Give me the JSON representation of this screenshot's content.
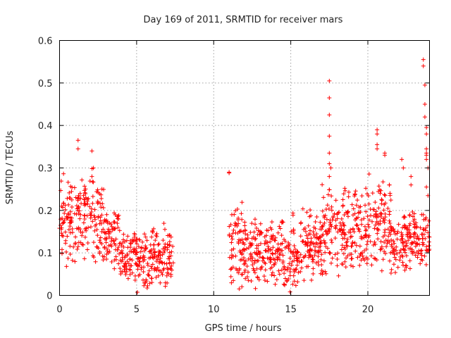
{
  "chart_data": {
    "type": "scatter",
    "title": "Day 169 of 2011, SRMTID for receiver mars",
    "xlabel": "GPS time / hours",
    "ylabel": "SRMTID / TECUs",
    "xlim": [
      0,
      24
    ],
    "ylim": [
      0,
      0.6
    ],
    "x_ticks": [
      0,
      5,
      10,
      15,
      20
    ],
    "x_tick_labels": [
      "0",
      "5",
      "10",
      "15",
      "20"
    ],
    "y_ticks": [
      0,
      0.1,
      0.2,
      0.3,
      0.4,
      0.5,
      0.6
    ],
    "y_tick_labels": [
      "0",
      "0.1",
      "0.2",
      "0.3",
      "0.4",
      "0.5",
      "0.6"
    ],
    "grid": true,
    "marker": "+",
    "series": [
      {
        "name": "SRMTID",
        "color": "#ff0000",
        "envelope_note": "approximate value envelope per time window, in data units",
        "segments": [
          {
            "x_range": [
              0.0,
              1.0
            ],
            "y_range": [
              0.06,
              0.29
            ]
          },
          {
            "x_range": [
              1.0,
              2.0
            ],
            "y_range": [
              0.08,
              0.31
            ]
          },
          {
            "x_range": [
              2.0,
              3.0
            ],
            "y_range": [
              0.06,
              0.3
            ]
          },
          {
            "x_range": [
              3.0,
              3.9
            ],
            "y_range": [
              0.05,
              0.22
            ]
          },
          {
            "x_range": [
              3.9,
              5.0
            ],
            "y_range": [
              0.03,
              0.16
            ]
          },
          {
            "x_range": [
              5.0,
              6.0
            ],
            "y_range": [
              0.0,
              0.16
            ]
          },
          {
            "x_range": [
              6.0,
              7.4
            ],
            "y_range": [
              0.0,
              0.18
            ]
          },
          {
            "x_range": [
              11.0,
              12.0
            ],
            "y_range": [
              0.0,
              0.23
            ]
          },
          {
            "x_range": [
              12.0,
              13.5
            ],
            "y_range": [
              0.0,
              0.2
            ]
          },
          {
            "x_range": [
              13.5,
              15.5
            ],
            "y_range": [
              0.0,
              0.2
            ]
          },
          {
            "x_range": [
              15.5,
              17.0
            ],
            "y_range": [
              0.02,
              0.21
            ]
          },
          {
            "x_range": [
              17.0,
              18.5
            ],
            "y_range": [
              0.03,
              0.27
            ]
          },
          {
            "x_range": [
              18.5,
              20.0
            ],
            "y_range": [
              0.04,
              0.26
            ]
          },
          {
            "x_range": [
              20.0,
              21.5
            ],
            "y_range": [
              0.05,
              0.3
            ]
          },
          {
            "x_range": [
              21.5,
              22.5
            ],
            "y_range": [
              0.04,
              0.2
            ]
          },
          {
            "x_range": [
              22.5,
              24.0
            ],
            "y_range": [
              0.06,
              0.21
            ]
          }
        ],
        "notable_points": [
          [
            1.2,
            0.365
          ],
          [
            1.2,
            0.345
          ],
          [
            2.1,
            0.34
          ],
          [
            2.2,
            0.3
          ],
          [
            2.1,
            0.28
          ],
          [
            11.0,
            0.29
          ],
          [
            11.0,
            0.288
          ],
          [
            17.5,
            0.505
          ],
          [
            17.5,
            0.465
          ],
          [
            17.5,
            0.425
          ],
          [
            17.5,
            0.375
          ],
          [
            17.5,
            0.335
          ],
          [
            17.5,
            0.31
          ],
          [
            17.6,
            0.3
          ],
          [
            17.5,
            0.28
          ],
          [
            20.6,
            0.39
          ],
          [
            20.6,
            0.38
          ],
          [
            20.6,
            0.355
          ],
          [
            20.6,
            0.345
          ],
          [
            21.1,
            0.335
          ],
          [
            21.1,
            0.33
          ],
          [
            21.4,
            0.26
          ],
          [
            22.2,
            0.32
          ],
          [
            22.3,
            0.3
          ],
          [
            22.8,
            0.28
          ],
          [
            22.8,
            0.26
          ],
          [
            23.6,
            0.555
          ],
          [
            23.6,
            0.54
          ],
          [
            23.7,
            0.495
          ],
          [
            23.7,
            0.45
          ],
          [
            23.7,
            0.42
          ],
          [
            23.8,
            0.395
          ],
          [
            23.8,
            0.38
          ],
          [
            23.8,
            0.345
          ],
          [
            23.8,
            0.335
          ],
          [
            23.8,
            0.33
          ],
          [
            23.8,
            0.32
          ],
          [
            23.9,
            0.3
          ],
          [
            23.8,
            0.255
          ],
          [
            23.9,
            0.235
          ],
          [
            23.6,
            0.19
          ]
        ]
      }
    ]
  }
}
